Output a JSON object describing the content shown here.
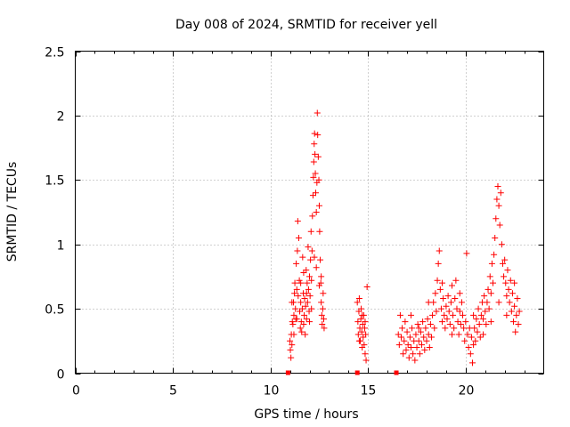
{
  "chart_data": {
    "type": "scatter",
    "title": "Day 008 of 2024, SRMTID for receiver yell",
    "xlabel": "GPS time / hours",
    "ylabel": "SRMTID / TECUs",
    "xlim": [
      0,
      24
    ],
    "ylim": [
      0,
      2.5
    ],
    "xticks": [
      0,
      5,
      10,
      15,
      20
    ],
    "yticks": [
      0,
      0.5,
      1,
      1.5,
      2,
      2.5
    ],
    "xtick_labels": [
      "0",
      "5",
      "10",
      "15",
      "20"
    ],
    "ytick_labels": [
      "0",
      "0.5",
      "1",
      "1.5",
      "2",
      "2.5"
    ],
    "grid": true,
    "marker": "+",
    "color": "#ff0000",
    "zero_markers_x": [
      10.9,
      14.45,
      16.45
    ],
    "series": [
      {
        "name": "SRMTID",
        "points": [
          [
            11.0,
            0.25
          ],
          [
            11.02,
            0.18
          ],
          [
            11.05,
            0.12
          ],
          [
            11.07,
            0.3
          ],
          [
            11.1,
            0.22
          ],
          [
            11.12,
            0.4
          ],
          [
            11.15,
            0.38
          ],
          [
            11.18,
            0.55
          ],
          [
            11.2,
            0.45
          ],
          [
            11.23,
            0.62
          ],
          [
            11.25,
            0.7
          ],
          [
            11.28,
            0.5
          ],
          [
            11.3,
            0.42
          ],
          [
            11.32,
            0.85
          ],
          [
            11.35,
            0.65
          ],
          [
            11.38,
            0.95
          ],
          [
            11.4,
            1.18
          ],
          [
            11.42,
            0.6
          ],
          [
            11.45,
            1.05
          ],
          [
            11.48,
            0.72
          ],
          [
            11.5,
            0.48
          ],
          [
            11.53,
            0.35
          ],
          [
            11.55,
            0.55
          ],
          [
            11.58,
            0.4
          ],
          [
            11.6,
            0.32
          ],
          [
            11.63,
            0.5
          ],
          [
            11.65,
            0.9
          ],
          [
            11.68,
            0.62
          ],
          [
            11.7,
            0.38
          ],
          [
            11.73,
            0.45
          ],
          [
            11.75,
            0.58
          ],
          [
            11.78,
            0.3
          ],
          [
            11.8,
            0.52
          ],
          [
            11.83,
            0.8
          ],
          [
            11.85,
            0.42
          ],
          [
            11.88,
            0.7
          ],
          [
            11.9,
            0.55
          ],
          [
            11.93,
            0.98
          ],
          [
            11.95,
            0.65
          ],
          [
            11.98,
            0.48
          ],
          [
            12.0,
            0.75
          ],
          [
            12.03,
            0.6
          ],
          [
            12.05,
            0.88
          ],
          [
            12.08,
            1.1
          ],
          [
            12.1,
            0.72
          ],
          [
            12.13,
            0.95
          ],
          [
            12.15,
            1.22
          ],
          [
            12.18,
            1.38
          ],
          [
            12.2,
            1.52
          ],
          [
            12.22,
            1.64
          ],
          [
            12.24,
            1.78
          ],
          [
            12.26,
            1.86
          ],
          [
            12.28,
            1.7
          ],
          [
            12.3,
            1.55
          ],
          [
            12.32,
            1.4
          ],
          [
            12.35,
            1.25
          ],
          [
            12.38,
            1.48
          ],
          [
            12.4,
            2.02
          ],
          [
            12.42,
            1.85
          ],
          [
            12.45,
            1.68
          ],
          [
            12.48,
            1.5
          ],
          [
            12.5,
            1.3
          ],
          [
            12.52,
            1.1
          ],
          [
            12.55,
            0.88
          ],
          [
            12.58,
            0.7
          ],
          [
            12.6,
            0.55
          ],
          [
            12.63,
            0.45
          ],
          [
            12.65,
            0.38
          ],
          [
            12.68,
            0.5
          ],
          [
            12.7,
            0.62
          ],
          [
            12.73,
            0.42
          ],
          [
            12.75,
            0.35
          ],
          [
            11.1,
            0.55
          ],
          [
            11.2,
            0.3
          ],
          [
            11.35,
            0.42
          ],
          [
            11.55,
            0.7
          ],
          [
            11.7,
            0.78
          ],
          [
            11.85,
            0.62
          ],
          [
            12.0,
            0.4
          ],
          [
            12.1,
            0.5
          ],
          [
            12.25,
            0.9
          ],
          [
            12.35,
            0.82
          ],
          [
            12.5,
            0.68
          ],
          [
            12.6,
            0.75
          ],
          [
            14.45,
            0.55
          ],
          [
            14.48,
            0.4
          ],
          [
            14.5,
            0.3
          ],
          [
            14.53,
            0.48
          ],
          [
            14.55,
            0.58
          ],
          [
            14.58,
            0.35
          ],
          [
            14.6,
            0.25
          ],
          [
            14.63,
            0.42
          ],
          [
            14.65,
            0.5
          ],
          [
            14.68,
            0.32
          ],
          [
            14.7,
            0.2
          ],
          [
            14.73,
            0.38
          ],
          [
            14.75,
            0.28
          ],
          [
            14.78,
            0.45
          ],
          [
            14.8,
            0.22
          ],
          [
            14.83,
            0.35
          ],
          [
            14.85,
            0.15
          ],
          [
            14.88,
            0.3
          ],
          [
            14.9,
            0.1
          ],
          [
            14.95,
            0.67
          ],
          [
            14.55,
            0.25
          ],
          [
            14.7,
            0.45
          ],
          [
            14.85,
            0.4
          ],
          [
            16.55,
            0.3
          ],
          [
            16.6,
            0.22
          ],
          [
            16.65,
            0.45
          ],
          [
            16.7,
            0.28
          ],
          [
            16.75,
            0.35
          ],
          [
            16.8,
            0.15
          ],
          [
            16.85,
            0.25
          ],
          [
            16.9,
            0.4
          ],
          [
            16.95,
            0.18
          ],
          [
            17.0,
            0.32
          ],
          [
            17.05,
            0.22
          ],
          [
            17.1,
            0.12
          ],
          [
            17.15,
            0.28
          ],
          [
            17.2,
            0.2
          ],
          [
            17.25,
            0.35
          ],
          [
            17.3,
            0.15
          ],
          [
            17.35,
            0.25
          ],
          [
            17.4,
            0.1
          ],
          [
            17.45,
            0.3
          ],
          [
            17.5,
            0.2
          ],
          [
            17.55,
            0.38
          ],
          [
            17.6,
            0.25
          ],
          [
            17.65,
            0.15
          ],
          [
            17.7,
            0.32
          ],
          [
            17.75,
            0.22
          ],
          [
            17.8,
            0.4
          ],
          [
            17.85,
            0.28
          ],
          [
            17.9,
            0.18
          ],
          [
            17.95,
            0.35
          ],
          [
            18.0,
            0.25
          ],
          [
            18.05,
            0.42
          ],
          [
            18.1,
            0.3
          ],
          [
            18.15,
            0.2
          ],
          [
            18.2,
            0.38
          ],
          [
            18.25,
            0.28
          ],
          [
            18.3,
            0.45
          ],
          [
            18.35,
            0.55
          ],
          [
            18.4,
            0.35
          ],
          [
            18.45,
            0.62
          ],
          [
            18.5,
            0.48
          ],
          [
            18.55,
            0.72
          ],
          [
            18.6,
            0.85
          ],
          [
            18.65,
            0.95
          ],
          [
            18.7,
            0.65
          ],
          [
            18.75,
            0.5
          ],
          [
            18.8,
            0.4
          ],
          [
            18.85,
            0.58
          ],
          [
            18.9,
            0.45
          ],
          [
            18.95,
            0.35
          ],
          [
            19.0,
            0.52
          ],
          [
            19.05,
            0.42
          ],
          [
            19.1,
            0.6
          ],
          [
            19.15,
            0.48
          ],
          [
            19.2,
            0.38
          ],
          [
            19.25,
            0.55
          ],
          [
            19.3,
            0.68
          ],
          [
            19.35,
            0.45
          ],
          [
            19.4,
            0.35
          ],
          [
            19.45,
            0.58
          ],
          [
            19.5,
            0.72
          ],
          [
            19.55,
            0.5
          ],
          [
            19.6,
            0.4
          ],
          [
            19.65,
            0.3
          ],
          [
            19.7,
            0.48
          ],
          [
            19.75,
            0.38
          ],
          [
            19.8,
            0.55
          ],
          [
            19.85,
            0.45
          ],
          [
            19.9,
            0.35
          ],
          [
            19.95,
            0.25
          ],
          [
            20.0,
            0.4
          ],
          [
            20.05,
            0.93
          ],
          [
            20.1,
            0.3
          ],
          [
            20.15,
            0.2
          ],
          [
            20.2,
            0.35
          ],
          [
            20.25,
            0.15
          ],
          [
            20.3,
            0.28
          ],
          [
            20.35,
            0.08
          ],
          [
            20.4,
            0.22
          ],
          [
            20.45,
            0.35
          ],
          [
            20.5,
            0.25
          ],
          [
            20.55,
            0.42
          ],
          [
            20.6,
            0.32
          ],
          [
            20.65,
            0.5
          ],
          [
            20.7,
            0.38
          ],
          [
            20.75,
            0.28
          ],
          [
            20.8,
            0.45
          ],
          [
            20.85,
            0.55
          ],
          [
            20.9,
            0.42
          ],
          [
            20.95,
            0.6
          ],
          [
            21.0,
            0.48
          ],
          [
            21.05,
            0.38
          ],
          [
            21.1,
            0.55
          ],
          [
            21.15,
            0.65
          ],
          [
            21.2,
            0.5
          ],
          [
            21.25,
            0.75
          ],
          [
            21.3,
            0.62
          ],
          [
            21.35,
            0.85
          ],
          [
            21.4,
            0.7
          ],
          [
            21.45,
            0.92
          ],
          [
            21.5,
            1.05
          ],
          [
            21.55,
            1.2
          ],
          [
            21.6,
            1.35
          ],
          [
            21.65,
            1.45
          ],
          [
            21.7,
            1.3
          ],
          [
            21.75,
            1.15
          ],
          [
            21.8,
            1.4
          ],
          [
            21.85,
            1.0
          ],
          [
            21.9,
            0.85
          ],
          [
            21.95,
            0.75
          ],
          [
            22.0,
            0.88
          ],
          [
            22.05,
            0.7
          ],
          [
            22.1,
            0.6
          ],
          [
            22.15,
            0.8
          ],
          [
            22.2,
            0.65
          ],
          [
            22.25,
            0.55
          ],
          [
            22.3,
            0.72
          ],
          [
            22.35,
            0.48
          ],
          [
            22.4,
            0.62
          ],
          [
            22.45,
            0.4
          ],
          [
            22.5,
            0.52
          ],
          [
            22.55,
            0.32
          ],
          [
            22.6,
            0.45
          ],
          [
            22.65,
            0.58
          ],
          [
            22.7,
            0.38
          ],
          [
            22.75,
            0.48
          ],
          [
            17.2,
            0.45
          ],
          [
            17.6,
            0.35
          ],
          [
            18.1,
            0.55
          ],
          [
            18.8,
            0.7
          ],
          [
            19.3,
            0.3
          ],
          [
            19.7,
            0.62
          ],
          [
            20.4,
            0.45
          ],
          [
            20.9,
            0.3
          ],
          [
            21.3,
            0.4
          ],
          [
            21.7,
            0.55
          ],
          [
            22.1,
            0.45
          ],
          [
            22.5,
            0.7
          ]
        ]
      }
    ]
  }
}
